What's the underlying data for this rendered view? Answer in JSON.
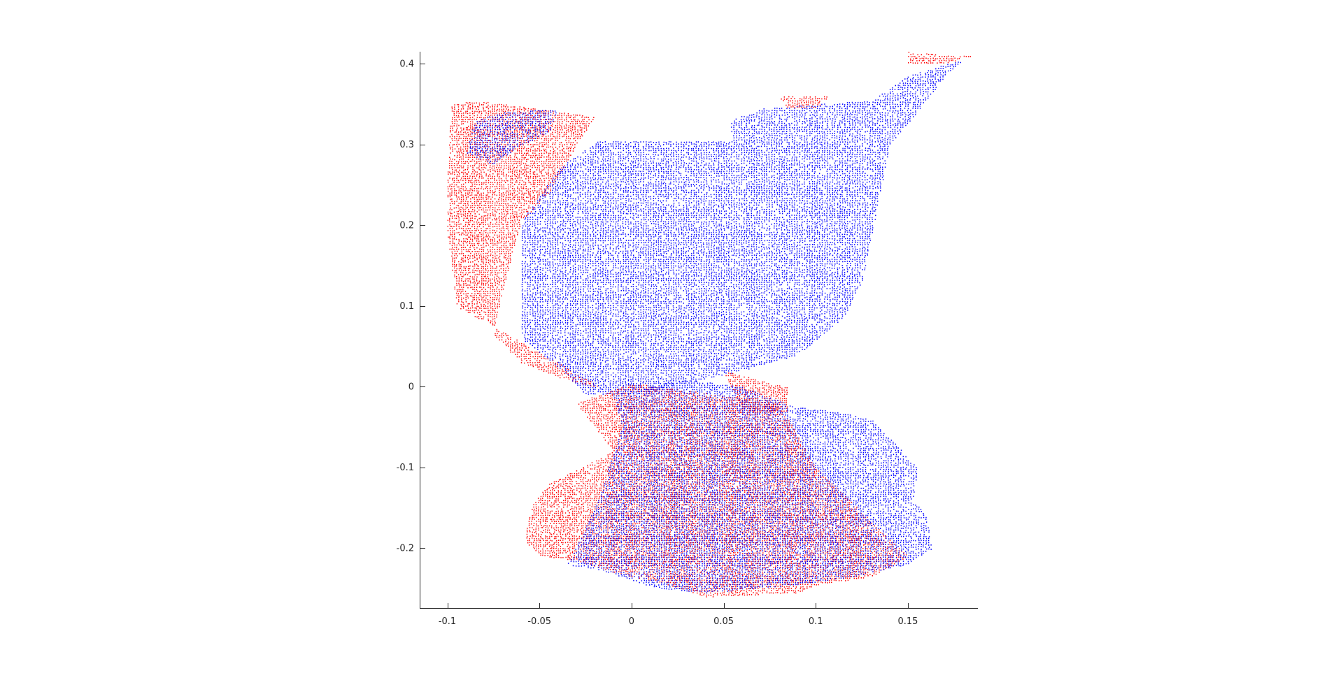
{
  "chart_data": {
    "type": "scatter",
    "title": "",
    "xlabel": "",
    "ylabel": "",
    "xlim": [
      -0.115,
      0.188
    ],
    "ylim": [
      -0.275,
      0.415
    ],
    "grid": false,
    "legend": "none",
    "x_ticks": [
      -0.1,
      -0.05,
      0,
      0.05,
      0.1,
      0.15
    ],
    "x_tick_labels": [
      "-0.1",
      "-0.05",
      "0",
      "0.05",
      "0.1",
      "0.15"
    ],
    "y_ticks": [
      -0.2,
      -0.1,
      0,
      0.1,
      0.2,
      0.3,
      0.4
    ],
    "y_tick_labels": [
      "-0.2",
      "-0.1",
      "0",
      "0.1",
      "0.2",
      "0.3",
      "0.4"
    ],
    "series": [
      {
        "color": "#ff0000",
        "marker": "dot",
        "regions": [
          [
            [
              -0.098,
              0.35
            ],
            [
              -0.085,
              0.355
            ],
            [
              -0.02,
              0.335
            ],
            [
              -0.03,
              0.3
            ],
            [
              -0.045,
              0.24
            ],
            [
              -0.06,
              0.205
            ],
            [
              -0.07,
              0.12
            ],
            [
              -0.075,
              0.065
            ],
            [
              -0.06,
              0.03
            ],
            [
              -0.035,
              0.008
            ],
            [
              -0.015,
              -0.002
            ],
            [
              -0.095,
              0.1
            ],
            [
              -0.1,
              0.19
            ],
            [
              -0.1,
              0.26
            ]
          ],
          [
            [
              -0.03,
              -0.02
            ],
            [
              -0.01,
              -0.08
            ],
            [
              -0.045,
              -0.12
            ],
            [
              -0.055,
              -0.15
            ],
            [
              -0.058,
              -0.19
            ],
            [
              -0.05,
              -0.21
            ],
            [
              -0.03,
              -0.215
            ],
            [
              -0.01,
              -0.23
            ],
            [
              0.02,
              -0.245
            ],
            [
              0.04,
              -0.26
            ],
            [
              0.09,
              -0.255
            ],
            [
              0.1,
              -0.245
            ],
            [
              0.13,
              -0.235
            ],
            [
              0.15,
              -0.21
            ],
            [
              0.1,
              -0.1
            ],
            [
              0.08,
              -0.02
            ],
            [
              0.0,
              0.005
            ]
          ],
          [
            [
              0.15,
              0.415
            ],
            [
              0.175,
              0.41
            ],
            [
              0.185,
              0.41
            ],
            [
              0.17,
              0.4
            ],
            [
              0.15,
              0.4
            ]
          ],
          [
            [
              0.08,
              0.36
            ],
            [
              0.108,
              0.36
            ],
            [
              0.1,
              0.345
            ],
            [
              0.085,
              0.345
            ]
          ],
          [
            [
              0.05,
              0.02
            ],
            [
              0.085,
              0.0
            ],
            [
              0.085,
              -0.03
            ],
            [
              0.06,
              -0.03
            ]
          ]
        ]
      },
      {
        "color": "#0000ff",
        "marker": "dot",
        "regions": [
          [
            [
              -0.06,
              0.205
            ],
            [
              -0.04,
              0.27
            ],
            [
              -0.018,
              0.305
            ],
            [
              0.055,
              0.305
            ],
            [
              0.053,
              0.33
            ],
            [
              0.07,
              0.345
            ],
            [
              0.1,
              0.35
            ],
            [
              0.13,
              0.355
            ],
            [
              0.15,
              0.385
            ],
            [
              0.17,
              0.4
            ],
            [
              0.18,
              0.405
            ],
            [
              0.17,
              0.385
            ],
            [
              0.155,
              0.34
            ],
            [
              0.14,
              0.3
            ],
            [
              0.135,
              0.24
            ],
            [
              0.125,
              0.13
            ],
            [
              0.115,
              0.085
            ],
            [
              0.09,
              0.04
            ],
            [
              0.06,
              0.02
            ],
            [
              0.0,
              -0.01
            ],
            [
              -0.025,
              -0.01
            ],
            [
              -0.04,
              0.025
            ],
            [
              -0.06,
              0.06
            ],
            [
              -0.06,
              0.16
            ]
          ],
          [
            [
              -0.01,
              -0.01
            ],
            [
              0.03,
              0.01
            ],
            [
              0.06,
              0.0
            ],
            [
              0.09,
              -0.025
            ],
            [
              0.11,
              -0.03
            ],
            [
              0.13,
              -0.04
            ],
            [
              0.145,
              -0.075
            ],
            [
              0.155,
              -0.1
            ],
            [
              0.153,
              -0.14
            ],
            [
              0.16,
              -0.16
            ],
            [
              0.163,
              -0.2
            ],
            [
              0.15,
              -0.22
            ],
            [
              0.12,
              -0.235
            ],
            [
              0.09,
              -0.245
            ],
            [
              0.04,
              -0.255
            ],
            [
              0.015,
              -0.25
            ],
            [
              -0.02,
              -0.225
            ],
            [
              -0.035,
              -0.22
            ],
            [
              -0.02,
              -0.15
            ],
            [
              -0.005,
              -0.05
            ]
          ],
          [
            [
              -0.085,
              0.33
            ],
            [
              -0.07,
              0.34
            ],
            [
              -0.04,
              0.345
            ],
            [
              -0.045,
              0.315
            ],
            [
              -0.06,
              0.3
            ],
            [
              -0.075,
              0.275
            ],
            [
              -0.09,
              0.29
            ]
          ]
        ]
      }
    ]
  }
}
